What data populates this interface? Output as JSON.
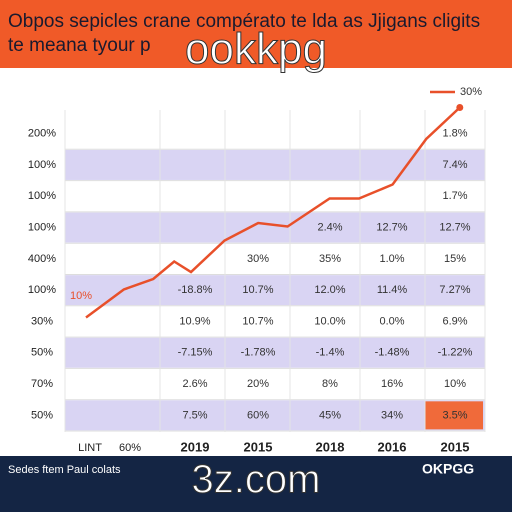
{
  "header": {
    "title": "Obpos sepicles crane compérato te lda as Jjigans cligits",
    "subtitle": "te meana tyour p"
  },
  "watermarks": [
    "ookkpg",
    "3z.com"
  ],
  "table": {
    "rows": [
      {
        "label": "200%",
        "cells": [
          null,
          null,
          null,
          null,
          "1.8%"
        ]
      },
      {
        "label": "100%",
        "cells": [
          null,
          null,
          null,
          null,
          "7.4%"
        ]
      },
      {
        "label": "100%",
        "cells": [
          null,
          null,
          null,
          null,
          "1.7%"
        ]
      },
      {
        "label": "100%",
        "cells": [
          null,
          null,
          "2.4%",
          "12.7%",
          "12.7%"
        ]
      },
      {
        "label": "400%",
        "cells": [
          null,
          "30%",
          "35%",
          "1.0%",
          "15%"
        ]
      },
      {
        "label": "100%",
        "cells": [
          "-18.8%",
          "10.7%",
          "12.0%",
          "11.4%",
          "7.27%"
        ]
      },
      {
        "label": "30%",
        "cells": [
          "10.9%",
          "10.7%",
          "10.0%",
          "0.0%",
          "6.9%"
        ]
      },
      {
        "label": "50%",
        "cells": [
          "-7.15%",
          "-1.78%",
          "-1.4%",
          "-1.48%",
          "-1.22%"
        ]
      },
      {
        "label": "70%",
        "cells": [
          "2.6%",
          "20%",
          "8%",
          "16%",
          "10%"
        ]
      },
      {
        "label": "50%",
        "cells": [
          "7.5%",
          "60%",
          "45%",
          "34%",
          "3.5%"
        ]
      }
    ],
    "columns": [
      "LINT",
      "60%",
      "2019",
      "2015",
      "2018",
      "2016",
      "2015"
    ]
  },
  "chart_data": {
    "type": "line",
    "annotation": "10%",
    "x": [
      5,
      14,
      21,
      26,
      30,
      38,
      46,
      53,
      63,
      70,
      78,
      86,
      94
    ],
    "xlim": [
      0,
      100
    ],
    "ylim": [
      0,
      100
    ],
    "series": [
      {
        "name": "30%",
        "color": "#e8502a",
        "values": [
          35,
          43,
          46,
          51,
          48,
          57,
          62,
          61,
          69,
          69,
          73,
          86,
          95
        ]
      }
    ]
  },
  "footer": {
    "text": "Sedes ftem Paul colats",
    "logo": "OKPGG"
  }
}
